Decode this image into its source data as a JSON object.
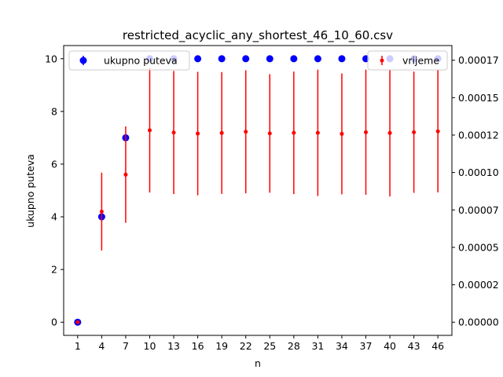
{
  "chart_data": {
    "type": "scatter",
    "title": "restricted_acyclic_any_shortest_46_10_60.csv",
    "xlabel": "n",
    "ylabel": "ukupno puteva",
    "x": [
      1,
      4,
      7,
      10,
      13,
      16,
      19,
      22,
      25,
      28,
      31,
      34,
      37,
      40,
      43,
      46
    ],
    "x_tick_labels": [
      "1",
      "4",
      "7",
      "10",
      "13",
      "16",
      "19",
      "22",
      "25",
      "28",
      "31",
      "34",
      "37",
      "40",
      "43",
      "46"
    ],
    "xlim": [
      -0.75,
      47.75
    ],
    "ylim": [
      -0.5,
      10.5
    ],
    "y_ticks": [
      0,
      2,
      4,
      6,
      8,
      10
    ],
    "y_tick_labels": [
      "0",
      "2",
      "4",
      "6",
      "8",
      "10"
    ],
    "y2lim": [
      -8.8e-06,
      0.0001848
    ],
    "y2_ticks": [
      0,
      2.5e-05,
      5e-05,
      7.5e-05,
      0.0001,
      0.000125,
      0.00015,
      0.000175
    ],
    "y2_tick_labels": [
      "0.00000",
      "0.00002",
      "0.00005",
      "0.00007",
      "0.00010",
      "0.00012",
      "0.00015",
      "0.00017"
    ],
    "grid": false,
    "series": [
      {
        "name": "ukupno puteva",
        "axis": "left",
        "color": "#0000ff",
        "marker": "circle",
        "values": [
          0,
          4,
          7,
          10,
          10,
          10,
          10,
          10,
          10,
          10,
          10,
          10,
          10,
          10,
          10,
          10
        ],
        "errors": [
          0,
          0,
          0,
          0,
          0,
          0,
          0,
          0,
          0,
          0,
          0,
          0,
          0,
          0,
          0,
          0
        ]
      },
      {
        "name": "vrijeme",
        "axis": "right",
        "color": "#ff0000",
        "marker": "dot",
        "values": [
          0,
          7.39e-05,
          9.86e-05,
          0.0001282,
          0.0001267,
          0.000126,
          0.0001264,
          0.0001272,
          0.0001261,
          0.0001265,
          0.0001265,
          0.0001258,
          0.0001269,
          0.0001264,
          0.0001269,
          0.0001275
        ],
        "errors": [
          0,
          2.6e-05,
          3.22e-05,
          4.16e-05,
          4.11e-05,
          4.12e-05,
          4.07e-05,
          4.11e-05,
          3.96e-05,
          4.09e-05,
          4.22e-05,
          4.04e-05,
          4.18e-05,
          4.24e-05,
          4.05e-05,
          4.08e-05
        ]
      }
    ],
    "legends": [
      {
        "position": "upper-left",
        "series": "ukupno puteva"
      },
      {
        "position": "upper-right",
        "series": "vrijeme"
      }
    ]
  }
}
